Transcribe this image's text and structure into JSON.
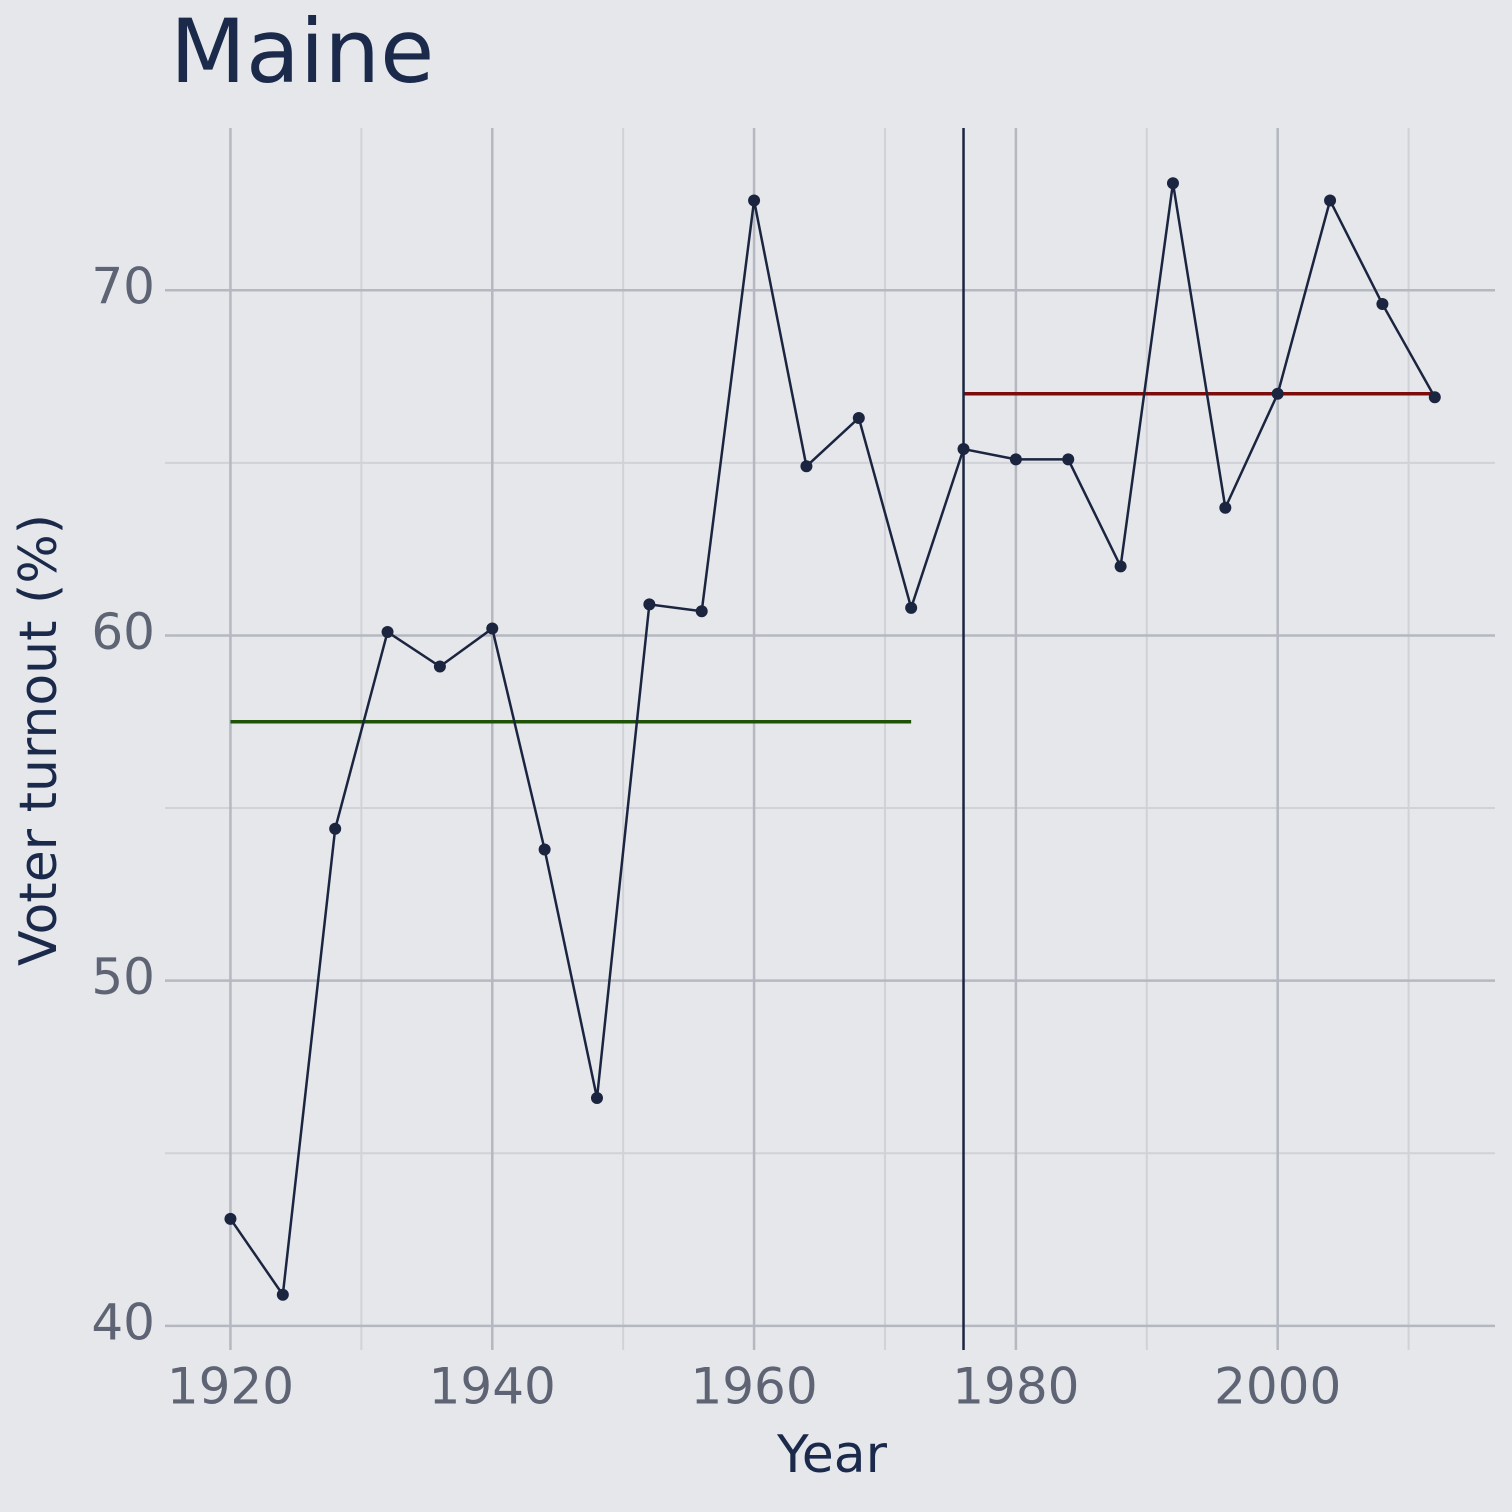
{
  "chart_data": {
    "type": "line",
    "title": "Maine",
    "x_label": "Year",
    "y_label": "Voter turnout (%)",
    "x": [
      1920,
      1924,
      1928,
      1932,
      1936,
      1940,
      1944,
      1948,
      1952,
      1956,
      1960,
      1964,
      1968,
      1972,
      1976,
      1980,
      1984,
      1988,
      1992,
      1996,
      2000,
      2004,
      2008,
      2012
    ],
    "values": [
      43.1,
      40.9,
      54.4,
      60.1,
      59.1,
      60.2,
      53.8,
      46.6,
      60.9,
      60.7,
      72.6,
      64.9,
      66.3,
      60.8,
      65.4,
      65.1,
      65.1,
      62.0,
      73.1,
      63.7,
      67.0,
      72.6,
      69.6,
      66.9
    ],
    "color": "#1b2540",
    "xlim": [
      1915,
      2016.6
    ],
    "ylim": [
      39.3,
      74.7
    ],
    "xticks": [
      1920,
      1940,
      1960,
      1980,
      2000
    ],
    "yticks": [
      40,
      50,
      60,
      70
    ],
    "xminorticks": [
      1930,
      1950,
      1970,
      1990,
      2010
    ],
    "yminorticks": [
      45,
      55,
      65
    ],
    "grid": true,
    "reference_lines": [
      {
        "y": 57.5,
        "x": [
          1920,
          1972
        ],
        "color": "#1e5206"
      },
      {
        "y": 67.0,
        "x": [
          1976,
          2012
        ],
        "color": "#7a0c0c"
      }
    ],
    "vline": 1976,
    "vline_color": "#1b2540"
  }
}
